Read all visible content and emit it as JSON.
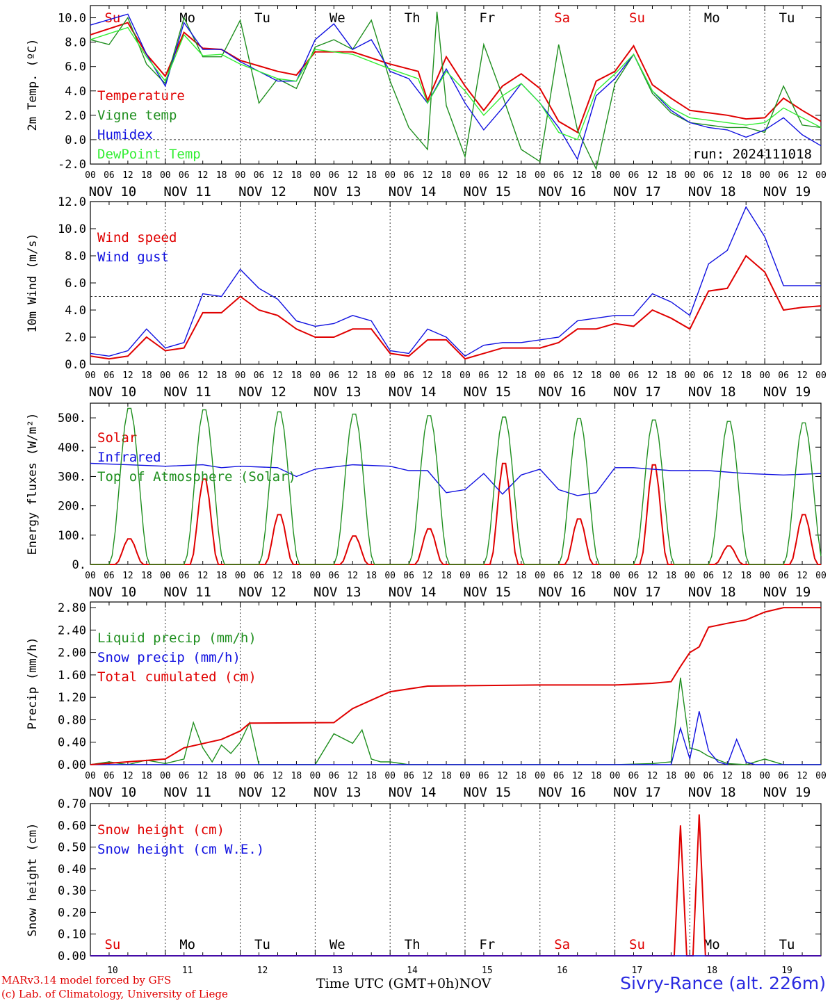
{
  "meta": {
    "run_label": "run: 2024111018",
    "footer_model": "MARv3.14 model forced by GFS",
    "footer_lab": "(c) Lab. of Climatology, University of Liege",
    "station": "Sivry-Rance (alt. 226m)",
    "time_axis_label": "Time UTC (GMT+0h)",
    "time_axis_unit": "NOV"
  },
  "days": {
    "names": [
      "Su",
      "Mo",
      "Tu",
      "We",
      "Th",
      "Fr",
      "Sa",
      "Su",
      "Mo",
      "Tu"
    ],
    "dates": [
      "NOV 10",
      "NOV 11",
      "NOV 12",
      "NOV 13",
      "NOV 14",
      "NOV 15",
      "NOV 16",
      "NOV 17",
      "NOV 18",
      "NOV 19"
    ],
    "numbers": [
      "10",
      "11",
      "12",
      "13",
      "14",
      "15",
      "16",
      "17",
      "18",
      "19"
    ],
    "weekend": [
      true,
      false,
      false,
      false,
      false,
      false,
      true,
      true,
      false,
      false
    ],
    "hour_ticks": [
      "00",
      "06",
      "12",
      "18"
    ],
    "final_tick": "00"
  },
  "colors": {
    "red": "#e00000",
    "darkgreen": "#1f8f1f",
    "blue": "#1010e0",
    "lightgreen": "#33ee33",
    "purple": "#800080",
    "black": "#000000"
  },
  "chart_data": [
    {
      "type": "line",
      "title": "",
      "ylabel": "2m Temp. (ºC)",
      "ylim": [
        -2,
        11
      ],
      "yticks": [
        "-2.0",
        "0.0",
        "2.0",
        "4.0",
        "6.0",
        "8.0",
        "10.0"
      ],
      "reference_line": 0,
      "x_unit": "hours since Nov 10 00 UTC",
      "series": [
        {
          "name": "Temperature",
          "color": "red",
          "x": [
            0,
            12,
            18,
            24,
            30,
            36,
            42,
            48,
            60,
            66,
            72,
            84,
            96,
            105,
            108,
            114,
            120,
            126,
            132,
            138,
            144,
            150,
            156,
            162,
            168,
            174,
            180,
            186,
            192,
            198,
            204,
            210,
            216,
            222,
            228,
            234
          ],
          "y": [
            8.6,
            9.6,
            7.0,
            5.2,
            8.8,
            7.5,
            7.4,
            6.5,
            5.6,
            5.3,
            7.2,
            7.2,
            6.2,
            5.6,
            3.2,
            6.8,
            4.4,
            2.4,
            4.4,
            5.4,
            4.2,
            1.5,
            0.6,
            4.8,
            5.6,
            7.7,
            4.5,
            3.4,
            2.4,
            2.2,
            2.0,
            1.7,
            1.8,
            3.4,
            2.4,
            1.5
          ]
        },
        {
          "name": "Vigne temp",
          "color": "darkgreen",
          "x": [
            0,
            6,
            12,
            18,
            24,
            30,
            36,
            42,
            48,
            54,
            60,
            66,
            72,
            78,
            84,
            90,
            96,
            102,
            108,
            111,
            114,
            120,
            126,
            132,
            138,
            144,
            150,
            156,
            162,
            168,
            174,
            180,
            186,
            192,
            198,
            204,
            210,
            216,
            222,
            228,
            234
          ],
          "y": [
            8.2,
            7.8,
            10.0,
            6.2,
            4.6,
            10.0,
            6.8,
            6.8,
            9.8,
            3.0,
            5.0,
            4.2,
            7.6,
            8.2,
            7.4,
            9.8,
            4.8,
            1.0,
            -0.8,
            10.5,
            2.8,
            -1.4,
            7.8,
            3.6,
            -0.8,
            -1.8,
            7.8,
            0.8,
            -2.4,
            4.6,
            7.0,
            3.8,
            2.2,
            1.4,
            1.2,
            1.0,
            1.0,
            0.6,
            4.4,
            1.2,
            1.0
          ]
        },
        {
          "name": "Humidex",
          "color": "blue",
          "x": [
            0,
            12,
            18,
            24,
            30,
            36,
            42,
            48,
            60,
            66,
            72,
            78,
            84,
            90,
            96,
            102,
            108,
            114,
            120,
            126,
            132,
            138,
            144,
            150,
            156,
            162,
            168,
            174,
            180,
            186,
            192,
            198,
            204,
            210,
            216,
            222,
            228,
            234
          ],
          "y": [
            9.4,
            10.3,
            7.0,
            4.4,
            9.6,
            7.4,
            7.4,
            6.4,
            4.8,
            4.8,
            8.2,
            9.5,
            7.4,
            8.2,
            5.6,
            5.0,
            3.0,
            5.8,
            3.0,
            0.8,
            2.6,
            4.6,
            3.0,
            1.0,
            -1.6,
            3.6,
            5.0,
            7.0,
            4.0,
            2.4,
            1.4,
            1.0,
            0.8,
            0.2,
            0.8,
            1.8,
            0.4,
            -0.5
          ]
        },
        {
          "name": "DewPoint Temp",
          "color": "lightgreen",
          "x": [
            0,
            12,
            18,
            24,
            30,
            36,
            42,
            48,
            60,
            66,
            72,
            84,
            96,
            105,
            108,
            114,
            120,
            126,
            132,
            138,
            144,
            150,
            156,
            162,
            168,
            174,
            180,
            186,
            192,
            198,
            204,
            210,
            216,
            222,
            228,
            234
          ],
          "y": [
            8.2,
            9.2,
            6.8,
            4.8,
            8.6,
            6.9,
            7.0,
            6.2,
            5.0,
            4.8,
            7.4,
            7.0,
            5.8,
            5.0,
            3.0,
            5.6,
            4.0,
            2.0,
            3.6,
            4.6,
            3.0,
            0.6,
            0.0,
            4.0,
            5.4,
            7.0,
            4.0,
            2.6,
            1.8,
            1.6,
            1.4,
            1.2,
            1.4,
            2.6,
            1.8,
            1.0
          ]
        }
      ]
    },
    {
      "type": "line",
      "title": "",
      "ylabel": "10m Wind (m/s)",
      "ylim": [
        0,
        12
      ],
      "yticks": [
        "0.0",
        "2.0",
        "4.0",
        "6.0",
        "8.0",
        "10.0",
        "12.0"
      ],
      "reference_line": 5,
      "x_unit": "hours since Nov 10 00 UTC",
      "series": [
        {
          "name": "Wind speed",
          "color": "red",
          "x": [
            0,
            6,
            12,
            18,
            24,
            30,
            36,
            42,
            48,
            54,
            60,
            66,
            72,
            78,
            84,
            90,
            96,
            102,
            108,
            114,
            120,
            126,
            132,
            138,
            144,
            150,
            156,
            162,
            168,
            174,
            180,
            186,
            192,
            198,
            204,
            210,
            216,
            222,
            228,
            234
          ],
          "y": [
            0.6,
            0.4,
            0.6,
            2.0,
            1.0,
            1.2,
            3.8,
            3.8,
            5.0,
            4.0,
            3.6,
            2.6,
            2.0,
            2.0,
            2.6,
            2.6,
            0.8,
            0.6,
            1.8,
            1.8,
            0.4,
            0.8,
            1.2,
            1.2,
            1.2,
            1.6,
            2.6,
            2.6,
            3.0,
            2.8,
            4.0,
            3.4,
            2.6,
            5.4,
            5.6,
            8.0,
            6.8,
            4.0,
            4.2,
            4.3
          ]
        },
        {
          "name": "Wind gust",
          "color": "blue",
          "x": [
            0,
            6,
            12,
            18,
            24,
            30,
            36,
            42,
            48,
            54,
            60,
            66,
            72,
            78,
            84,
            90,
            96,
            102,
            108,
            114,
            120,
            126,
            132,
            138,
            144,
            150,
            156,
            162,
            168,
            174,
            180,
            186,
            192,
            198,
            204,
            210,
            216,
            222,
            228,
            234
          ],
          "y": [
            0.8,
            0.6,
            1.0,
            2.6,
            1.2,
            1.6,
            5.2,
            5.0,
            7.0,
            5.6,
            4.8,
            3.2,
            2.8,
            3.0,
            3.6,
            3.2,
            1.0,
            0.8,
            2.6,
            2.0,
            0.6,
            1.4,
            1.6,
            1.6,
            1.8,
            2.0,
            3.2,
            3.4,
            3.6,
            3.6,
            5.2,
            4.6,
            3.6,
            7.4,
            8.4,
            11.6,
            9.4,
            5.8,
            5.8,
            5.8
          ]
        }
      ]
    },
    {
      "type": "line",
      "title": "",
      "ylabel": "Energy fluxes (W/m²)",
      "ylim": [
        0,
        550
      ],
      "yticks": [
        "0.",
        "100.",
        "200.",
        "300.",
        "400.",
        "500."
      ],
      "x_unit": "hours since Nov 10 00 UTC",
      "series": [
        {
          "name": "Solar",
          "color": "red",
          "daily_peak": [
            90,
            300,
            175,
            100,
            125,
            355,
            160,
            350,
            65,
            175
          ]
        },
        {
          "name": "Infrared",
          "color": "blue",
          "x": [
            0,
            12,
            24,
            36,
            42,
            48,
            60,
            66,
            72,
            84,
            96,
            102,
            108,
            114,
            120,
            126,
            132,
            138,
            144,
            150,
            156,
            162,
            168,
            174,
            186,
            198,
            210,
            222,
            234
          ],
          "y": [
            345,
            340,
            335,
            340,
            330,
            335,
            330,
            300,
            325,
            340,
            335,
            320,
            320,
            245,
            255,
            310,
            240,
            305,
            325,
            255,
            235,
            245,
            330,
            330,
            320,
            320,
            310,
            305,
            310
          ]
        },
        {
          "name": "Top of Atmosphere (Solar)",
          "color": "darkgreen",
          "daily_peak": [
            540,
            535,
            528,
            520,
            515,
            510,
            505,
            500,
            495,
            490
          ]
        }
      ]
    },
    {
      "type": "line",
      "title": "",
      "ylabel": "Precip (mm/h)",
      "ylim": [
        0,
        2.9
      ],
      "yticks": [
        "0.00",
        "0.40",
        "0.80",
        "1.20",
        "1.60",
        "2.00",
        "2.40",
        "2.80"
      ],
      "x_unit": "hours since Nov 10 00 UTC",
      "series": [
        {
          "name": "Liquid precip (mm/h)",
          "color": "darkgreen",
          "x": [
            0,
            6,
            12,
            18,
            24,
            30,
            33,
            36,
            39,
            42,
            45,
            48,
            51,
            54,
            60,
            72,
            78,
            84,
            87,
            90,
            93,
            96,
            102,
            108,
            114,
            120,
            144,
            168,
            180,
            186,
            189,
            192,
            195,
            198,
            204,
            210,
            216,
            222,
            228,
            234
          ],
          "y": [
            0.0,
            0.05,
            0.0,
            0.08,
            0.02,
            0.1,
            0.75,
            0.3,
            0.05,
            0.35,
            0.2,
            0.4,
            0.75,
            0.0,
            0.0,
            0.0,
            0.55,
            0.38,
            0.62,
            0.1,
            0.05,
            0.05,
            0.0,
            0.0,
            0.0,
            0.0,
            0.0,
            0.0,
            0.02,
            0.05,
            1.55,
            0.3,
            0.25,
            0.15,
            0.02,
            0.0,
            0.1,
            0.0,
            0.0,
            0.0
          ]
        },
        {
          "name": "Snow precip (mm/h)",
          "color": "blue",
          "x": [
            0,
            186,
            189,
            192,
            195,
            198,
            201,
            204,
            207,
            210,
            213,
            216,
            222,
            228,
            234
          ],
          "y": [
            0.0,
            0.0,
            0.65,
            0.1,
            0.95,
            0.25,
            0.05,
            0.0,
            0.45,
            0.05,
            0.0,
            0.0,
            0.0,
            0.0,
            0.0
          ]
        },
        {
          "name": "Total cumulated (cm)",
          "color": "red",
          "x": [
            0,
            24,
            30,
            42,
            48,
            51,
            78,
            84,
            90,
            96,
            108,
            144,
            168,
            180,
            186,
            189,
            192,
            195,
            198,
            204,
            210,
            216,
            222,
            234
          ],
          "y": [
            0.0,
            0.1,
            0.3,
            0.45,
            0.6,
            0.74,
            0.75,
            1.0,
            1.15,
            1.3,
            1.4,
            1.42,
            1.42,
            1.45,
            1.48,
            1.75,
            2.0,
            2.1,
            2.45,
            2.52,
            2.58,
            2.72,
            2.8,
            2.8
          ]
        }
      ]
    },
    {
      "type": "line",
      "title": "",
      "ylabel": "Snow height (cm)",
      "ylim": [
        0,
        0.7
      ],
      "yticks": [
        "0.00",
        "0.10",
        "0.20",
        "0.30",
        "0.40",
        "0.50",
        "0.60",
        "0.70"
      ],
      "x_unit": "hours since Nov 10 00 UTC",
      "series": [
        {
          "name": "Snow height (cm)",
          "color": "red",
          "x": [
            0,
            187,
            189,
            191,
            192,
            193,
            195,
            197,
            234
          ],
          "y": [
            0.0,
            0.0,
            0.6,
            0.0,
            0.0,
            0.0,
            0.65,
            0.0,
            0.0
          ]
        },
        {
          "name": "Snow height (cm W.E.)",
          "color": "blue",
          "x": [
            0,
            234
          ],
          "y": [
            0.0,
            0.0
          ]
        }
      ]
    }
  ]
}
